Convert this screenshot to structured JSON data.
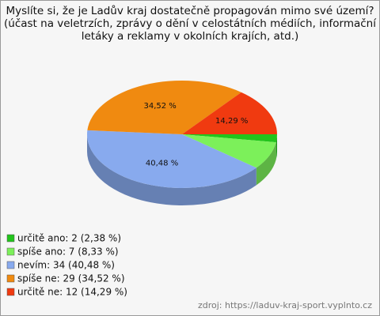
{
  "chart_data": {
    "type": "pie3d",
    "title": [
      "Myslíte si, že je Ladův kraj dostatečně propagován mimo své území?",
      "(účast na veletrzích, zprávy o dění v celostátních médiích, informační",
      "letáky a reklamy v okolních krajích, atd.)"
    ],
    "categories": [
      "určitě ano",
      "spíše ano",
      "nevím",
      "spíše ne",
      "určitě ne"
    ],
    "values": [
      2,
      7,
      34,
      29,
      12
    ],
    "colors": [
      "#22c41c",
      "#7cf05a",
      "#88aaee",
      "#f08a10",
      "#f03a10"
    ],
    "percents": [
      2.38,
      8.33,
      40.48,
      34.52,
      14.29
    ],
    "percent_labels": [
      null,
      null,
      "40,48 %",
      "34,52 %",
      "14,29 %"
    ],
    "legend_labels": [
      "určitě ano: 2 (2,38 %)",
      "spíše ano: 7 (8,33 %)",
      "nevím: 34 (40,48 %)",
      "spíše ne: 29 (34,52 %)",
      "určitě ne: 12 (14,29 %)"
    ],
    "source": "zdroj: https://laduv-kraj-sport.vyplnto.cz"
  }
}
